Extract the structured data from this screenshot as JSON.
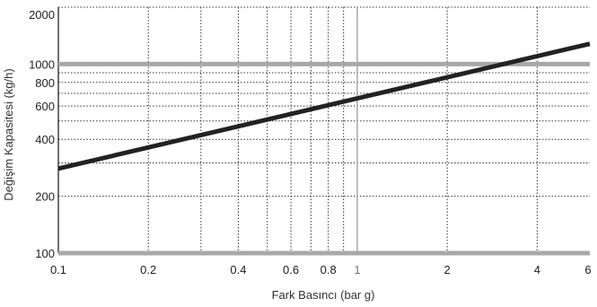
{
  "chart_data": {
    "type": "line",
    "title": "",
    "xlabel": "Fark Basıncı (bar g)",
    "ylabel": "Değişim Kapasitesi (kg/h)",
    "x_scale": "log",
    "y_scale": "log",
    "xlim": [
      0.1,
      6
    ],
    "ylim": [
      100,
      2000
    ],
    "x_ticks": [
      {
        "value": 0.1,
        "label": "0.1"
      },
      {
        "value": 0.2,
        "label": "0.2"
      },
      {
        "value": 0.4,
        "label": "0.4"
      },
      {
        "value": 0.6,
        "label": "0.6"
      },
      {
        "value": 0.8,
        "label": "0.8"
      },
      {
        "value": 1,
        "label": "1"
      },
      {
        "value": 2,
        "label": "2"
      },
      {
        "value": 4,
        "label": "4"
      },
      {
        "value": 6,
        "label": "6"
      }
    ],
    "y_ticks": [
      {
        "value": 100,
        "label": "100"
      },
      {
        "value": 200,
        "label": "200"
      },
      {
        "value": 400,
        "label": "400"
      },
      {
        "value": 600,
        "label": "600"
      },
      {
        "value": 800,
        "label": "800"
      },
      {
        "value": 1000,
        "label": "1000"
      },
      {
        "value": 2000,
        "label": "2000"
      }
    ],
    "x_gridlines": [
      0.2,
      0.3,
      0.4,
      0.5,
      0.6,
      0.7,
      0.8,
      0.9,
      2,
      4
    ],
    "y_gridlines": [
      200,
      300,
      400,
      500,
      600,
      700,
      800,
      900
    ],
    "x_emphasis_line": 1,
    "y_emphasis_lines": [
      100,
      1000
    ],
    "grid": true,
    "series": [
      {
        "values": [
          {
            "x": 0.1,
            "y": 280
          },
          {
            "x": 6,
            "y": 1280
          }
        ]
      }
    ],
    "colors": {
      "series": "#222222",
      "grid": "#333333",
      "emphasis": "#a8a8a8"
    }
  }
}
